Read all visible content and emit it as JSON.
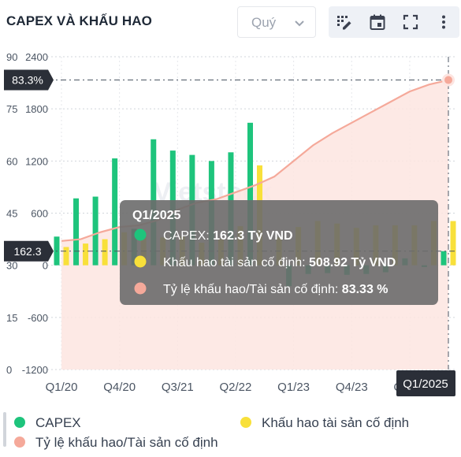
{
  "header": {
    "title": "CAPEX VÀ KHẤU HAO",
    "period_select": "Quý"
  },
  "toolbar": {
    "icons": [
      "chart-settings-icon",
      "calendar-icon",
      "fullscreen-icon",
      "more-vertical-icon"
    ]
  },
  "watermark": "Vietstock",
  "colors": {
    "capex": "#1ec47c",
    "depreciation": "#f8e03a",
    "ratio": "#f5a99a",
    "ratio_area": "#fde5e1",
    "tooltip_bg": "#6b6b6b",
    "label_bg": "#2b2f38"
  },
  "chart_data": {
    "type": "bar",
    "title": "CAPEX VÀ KHẤU HAO",
    "categories": [
      "Q1/20",
      "Q2/20",
      "Q3/20",
      "Q4/20",
      "Q1/21",
      "Q2/21",
      "Q3/21",
      "Q4/21",
      "Q1/22",
      "Q2/22",
      "Q3/22",
      "Q4/22",
      "Q1/23",
      "Q2/23",
      "Q3/23",
      "Q4/23",
      "Q1/24",
      "Q2/24",
      "Q3/24",
      "Q4/24",
      "Q1/25"
    ],
    "x_tick_labels": [
      "Q1/20",
      "Q4/20",
      "Q3/21",
      "Q2/22",
      "Q1/23",
      "Q4/23",
      "Q3/24"
    ],
    "left_axis_ticks": [
      "0",
      "15",
      "30",
      "45",
      "60",
      "75",
      "90"
    ],
    "right_axis_ticks": [
      "-1200",
      "-600",
      "0",
      "600",
      "1200",
      "1800",
      "2400"
    ],
    "left_axis_range": [
      0,
      90
    ],
    "right_axis_range": [
      -1200,
      2400
    ],
    "series": [
      {
        "name": "CAPEX",
        "type": "bar",
        "axis": "right",
        "values": [
          330,
          770,
          790,
          1230,
          420,
          1450,
          1320,
          1270,
          1200,
          1300,
          1640,
          -10,
          -240,
          -100,
          -90,
          -110,
          -100,
          -80,
          80,
          -20,
          162.3
        ]
      },
      {
        "name": "Khấu hao tài sản cố định",
        "type": "bar",
        "axis": "right",
        "values": [
          210,
          250,
          300,
          380,
          330,
          320,
          330,
          260,
          300,
          450,
          1150,
          320,
          440,
          510,
          480,
          430,
          460,
          460,
          460,
          510,
          508.92
        ]
      },
      {
        "name": "Tỷ lệ khấu hao/Tài sản cố định",
        "type": "area-line",
        "axis": "left",
        "values": [
          37.0,
          37.5,
          39.5,
          41.0,
          41.5,
          43.0,
          46.0,
          48.0,
          49.0,
          51.0,
          53.0,
          55.5,
          60.0,
          64.5,
          68.0,
          71.0,
          74.0,
          77.0,
          80.0,
          82.0,
          83.3
        ]
      }
    ],
    "legend_position": "bottom",
    "grid": true,
    "crosshair": {
      "category": "Q1/2025",
      "left_value_label": "83.3%",
      "right_value_label": "162.3"
    },
    "tooltip": {
      "title": "Q1/2025",
      "rows": [
        {
          "label": "CAPEX: ",
          "value": "162.3 Tỷ VND"
        },
        {
          "label": "Khấu hao tài sản cố định: ",
          "value": "508.92 Tỷ VND"
        },
        {
          "label": "Tỷ lệ khấu hao/Tài sản cố định: ",
          "value": "83.33 %"
        }
      ]
    }
  },
  "legend": {
    "capex": "CAPEX",
    "depreciation": "Khấu hao tài sản cố định",
    "ratio": "Tỷ lệ khấu hao/Tài sản cố định"
  }
}
